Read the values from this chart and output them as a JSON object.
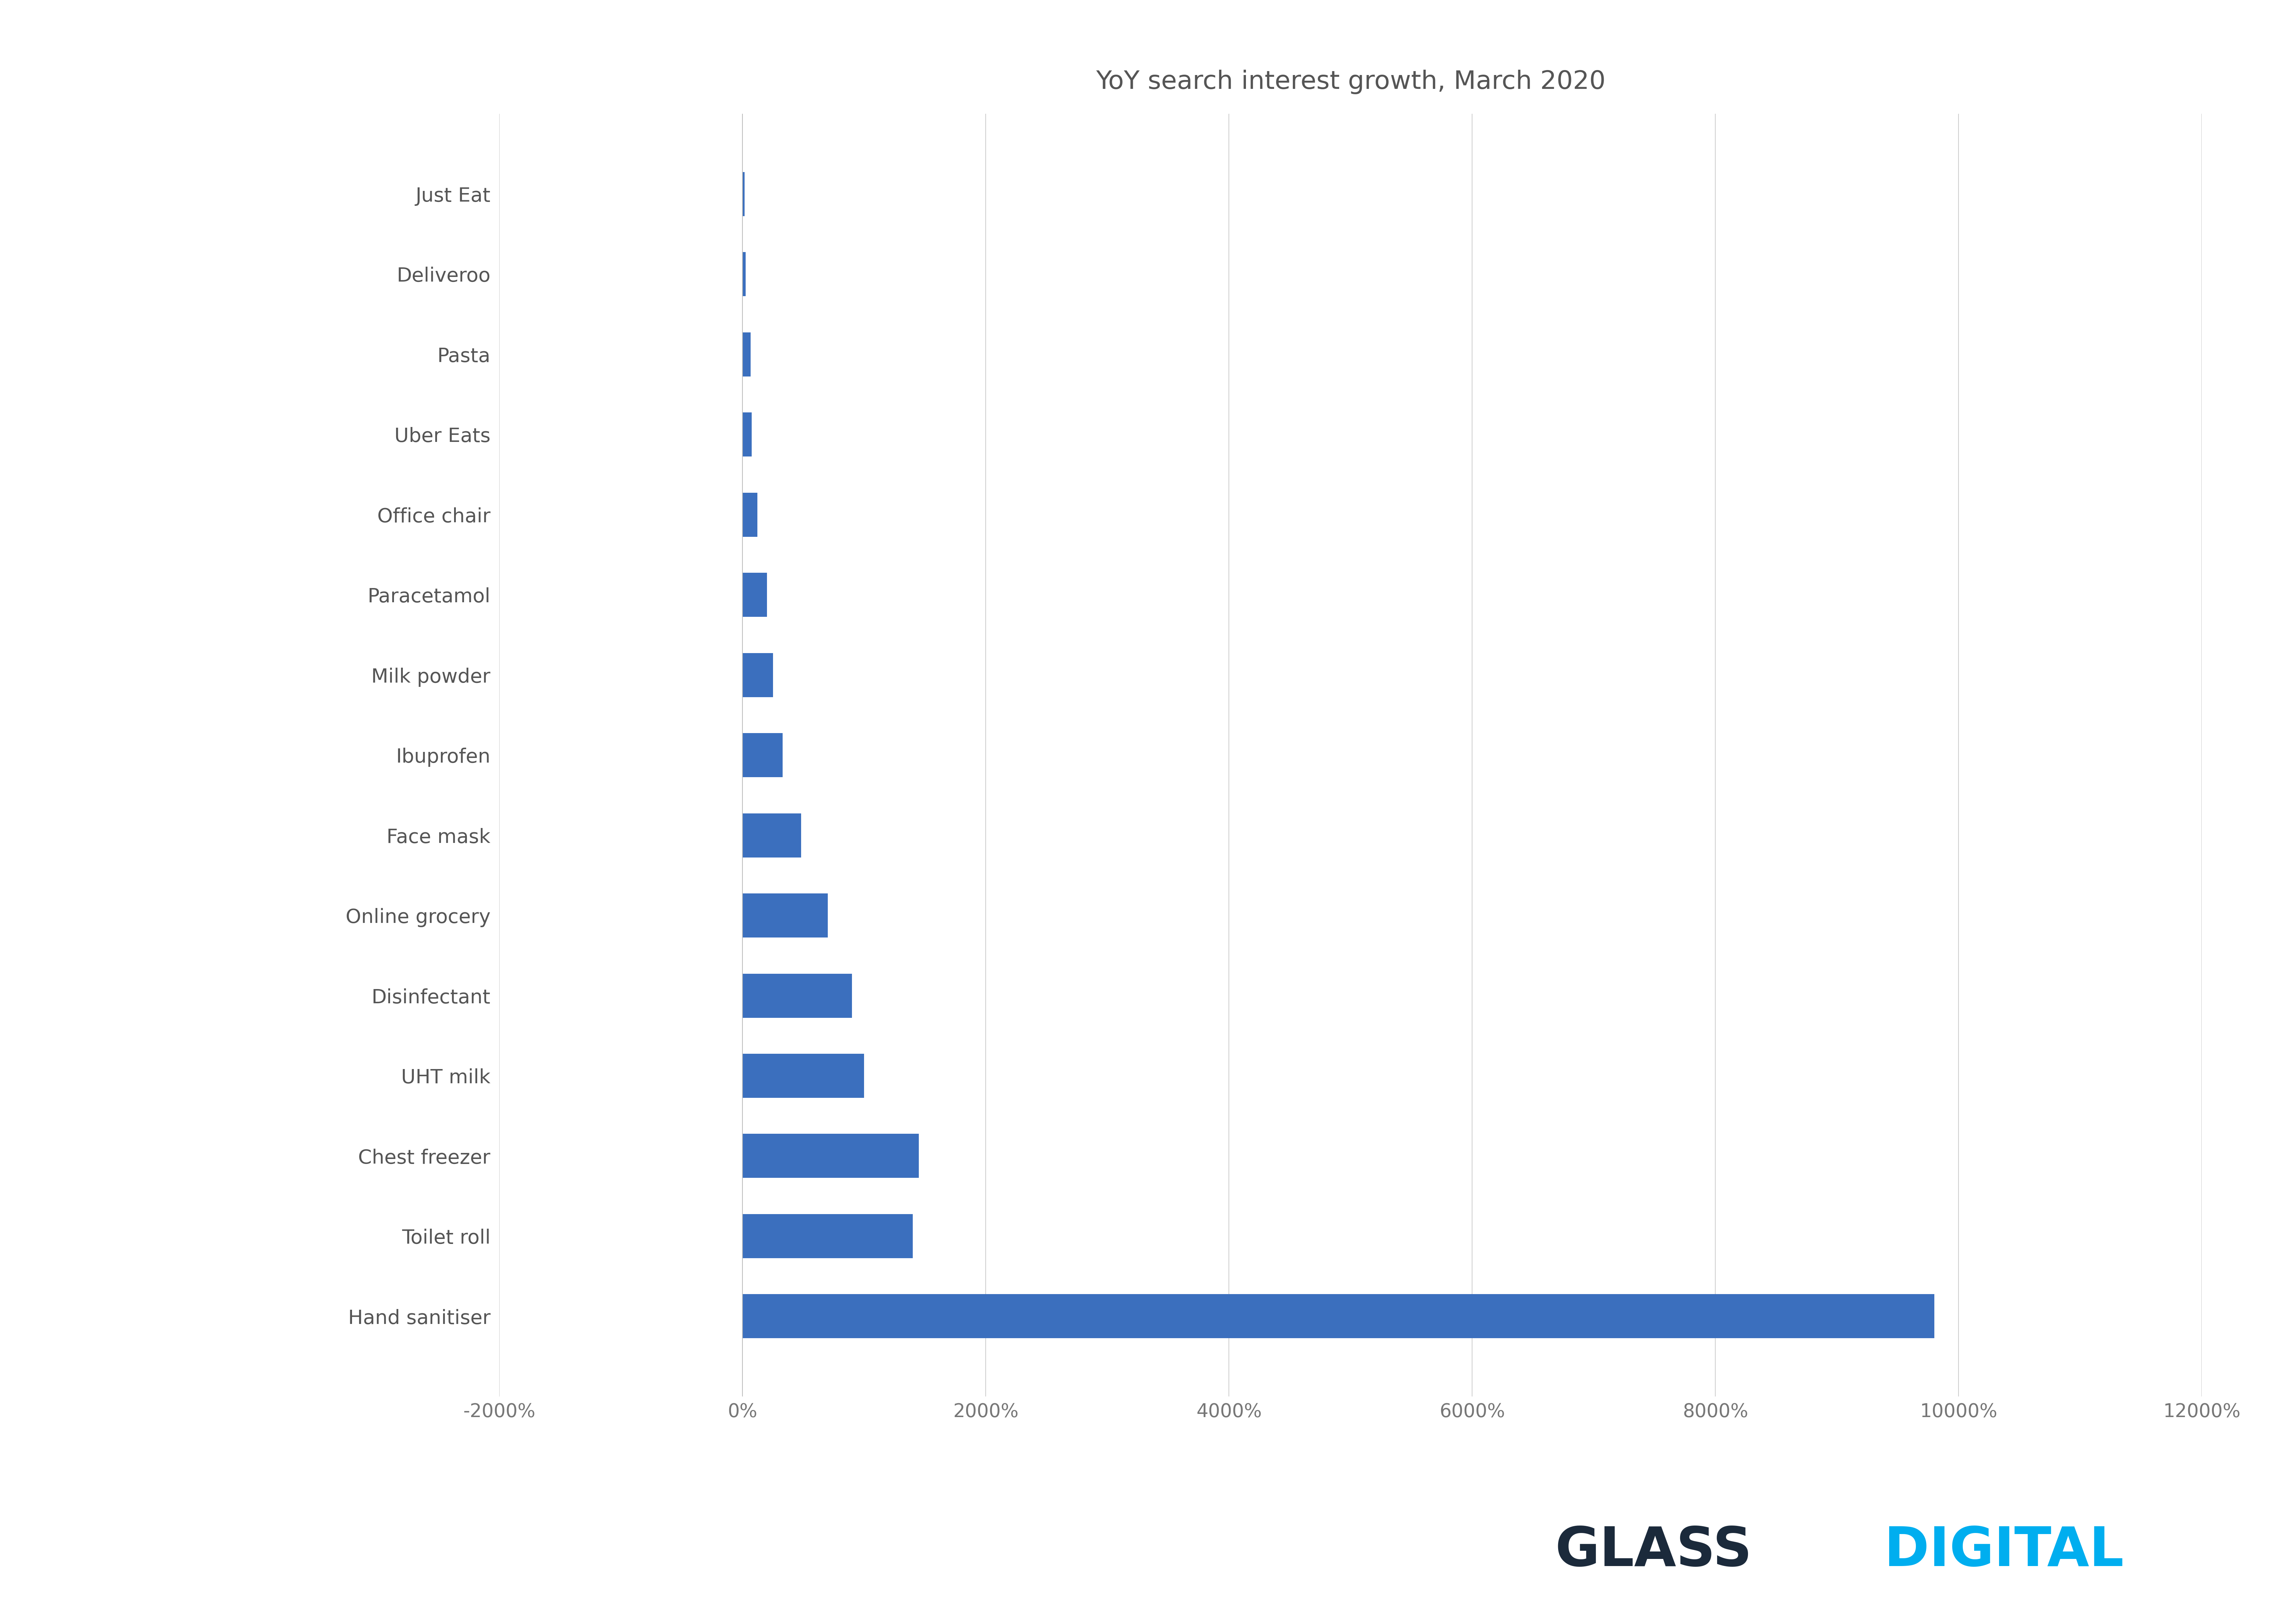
{
  "title": "YoY search interest growth, March 2020",
  "categories": [
    "Hand sanitiser",
    "Toilet roll",
    "Chest freezer",
    "UHT milk",
    "Disinfectant",
    "Online grocery",
    "Face mask",
    "Ibuprofen",
    "Milk powder",
    "Paracetamol",
    "Office chair",
    "Uber Eats",
    "Pasta",
    "Deliveroo",
    "Just Eat"
  ],
  "values": [
    9800,
    1400,
    1450,
    1000,
    900,
    700,
    480,
    330,
    250,
    200,
    120,
    75,
    65,
    25,
    15
  ],
  "bar_color": "#3B6FBE",
  "xlim": [
    -2000,
    12000
  ],
  "xticks": [
    -2000,
    0,
    2000,
    4000,
    6000,
    8000,
    10000,
    12000
  ],
  "xtick_labels": [
    "-2000%",
    "0%",
    "2000%",
    "4000%",
    "6000%",
    "8000%",
    "10000%",
    "12000%"
  ],
  "background_color": "#FFFFFF",
  "grid_color": "#CCCCCC",
  "title_fontsize": 52,
  "label_fontsize": 40,
  "tick_fontsize": 38,
  "logo_color_glass": "#1B2A3B",
  "logo_color_digital": "#00AEEF",
  "logo_fontsize": 110
}
